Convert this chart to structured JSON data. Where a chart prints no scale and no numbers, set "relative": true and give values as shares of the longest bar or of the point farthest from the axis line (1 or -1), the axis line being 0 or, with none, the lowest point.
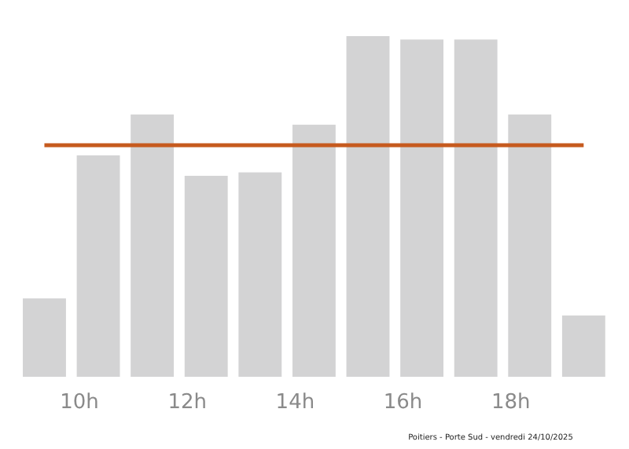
{
  "chart_data": {
    "type": "bar",
    "relative": true,
    "x": [
      9.35,
      10.35,
      11.35,
      12.35,
      13.35,
      14.35,
      15.35,
      16.35,
      17.35,
      18.35,
      19.35
    ],
    "values": [
      0.23,
      0.65,
      0.77,
      0.59,
      0.6,
      0.74,
      1,
      0.99,
      0.99,
      0.77,
      0.18
    ],
    "color": "#d3d3d4",
    "xlim": [
      8.9,
      19.8
    ],
    "xticks": [
      {
        "value": 10,
        "label": "10h"
      },
      {
        "value": 12,
        "label": "12h"
      },
      {
        "value": 14,
        "label": "14h"
      },
      {
        "value": 16,
        "label": "16h"
      },
      {
        "value": 18,
        "label": "18h"
      }
    ],
    "ref_lines": [
      {
        "axis": "y",
        "value": 0.68,
        "color": "#c65a1e"
      }
    ],
    "annotations": [
      "Poitiers - Porte Sud - vendredi 24/10/2025"
    ]
  }
}
